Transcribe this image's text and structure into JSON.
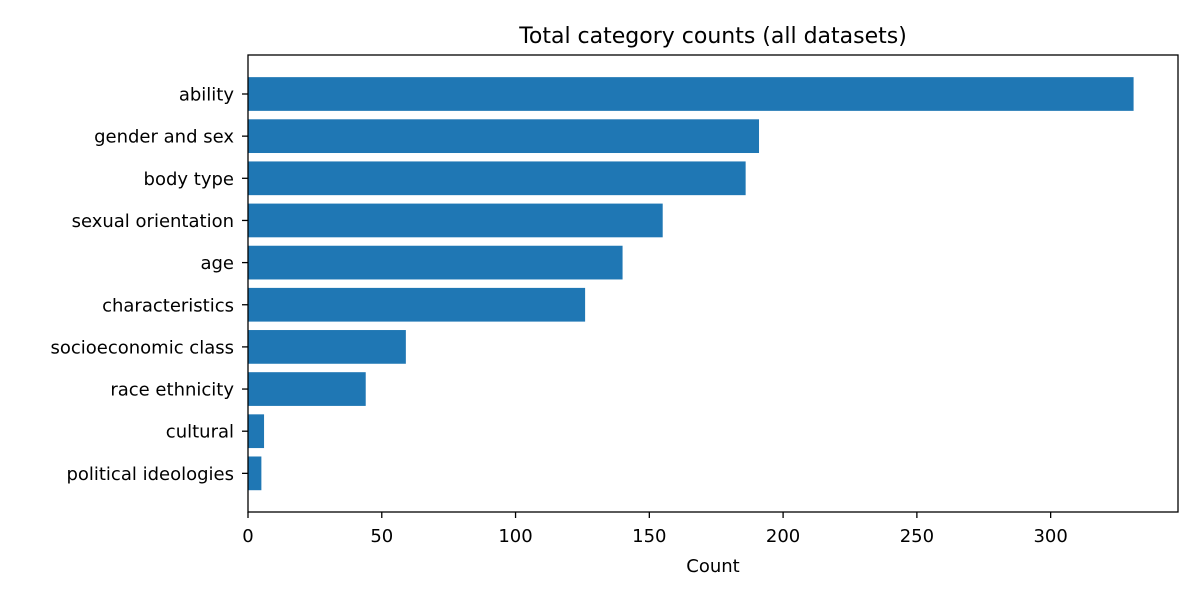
{
  "chart_data": {
    "type": "bar",
    "orientation": "horizontal",
    "title": "Total category counts (all datasets)",
    "xlabel": "Count",
    "ylabel": "",
    "categories": [
      "ability",
      "gender and sex",
      "body type",
      "sexual orientation",
      "age",
      "characteristics",
      "socioeconomic class",
      "race ethnicity",
      "cultural",
      "political ideologies"
    ],
    "values": [
      331,
      191,
      186,
      155,
      140,
      126,
      59,
      44,
      6,
      5
    ],
    "xlim": [
      0,
      347.6
    ],
    "xticks": [
      0,
      50,
      100,
      150,
      200,
      250,
      300
    ],
    "grid": false,
    "bar_color": "#1f77b4"
  }
}
